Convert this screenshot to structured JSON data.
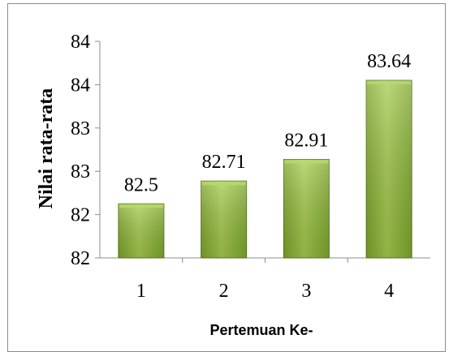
{
  "chart_data": {
    "type": "bar",
    "categories": [
      "1",
      "2",
      "3",
      "4"
    ],
    "values": [
      82.5,
      82.71,
      82.91,
      83.64
    ],
    "data_labels": [
      "82.5",
      "82.71",
      "82.91",
      "83.64"
    ],
    "title": "",
    "xlabel": "Pertemuan Ke-",
    "ylabel": "Nilai rata-rata",
    "ylim": [
      82,
      84
    ],
    "ytick_values": [
      82,
      82.4,
      82.8,
      83.2,
      83.6,
      84
    ],
    "ytick_labels": [
      "82",
      "82",
      "83",
      "83",
      "84",
      "84"
    ],
    "grid": false,
    "legend": "none",
    "colors": {
      "bar_top": "#b9d96a",
      "bar_mid": "#97bd3c",
      "bar_bottom": "#6f9424",
      "bar_edge": "#5b7a1c",
      "axis": "#8c8c8c"
    }
  }
}
